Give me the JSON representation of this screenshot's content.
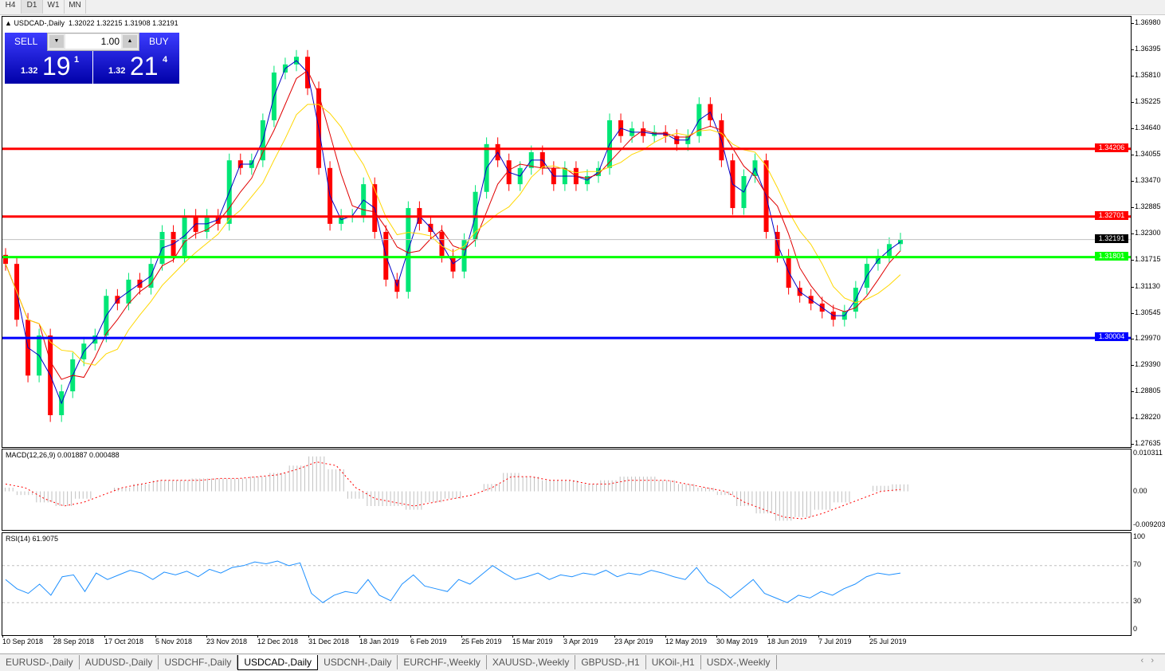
{
  "timeframes": [
    "H4",
    "D1",
    "W1",
    "MN"
  ],
  "active_timeframe": "D1",
  "chart_header": {
    "arrow": "▲",
    "symbol": "USDCAD-,Daily",
    "ohlc": "1.32022 1.32215 1.31908 1.32191"
  },
  "trade_panel": {
    "sell_label": "SELL",
    "buy_label": "BUY",
    "lot": "1.00",
    "sell_big": "1.32",
    "sell_main": "19",
    "sell_sup": "1",
    "buy_big": "1.32",
    "buy_main": "21",
    "buy_sup": "4"
  },
  "chart_data": [
    {
      "type": "candlestick",
      "title": "USDCAD-,Daily",
      "ylim": [
        1.27635,
        1.3698
      ],
      "y_ticks": [
        "1.36980",
        "1.36395",
        "1.35810",
        "1.35225",
        "1.34640",
        "1.34055",
        "1.33470",
        "1.32885",
        "1.32300",
        "1.31715",
        "1.31130",
        "1.30545",
        "1.29970",
        "1.29390",
        "1.28805",
        "1.28220",
        "1.27635"
      ],
      "x_ticks": [
        "10 Sep 2018",
        "28 Sep 2018",
        "17 Oct 2018",
        "5 Nov 2018",
        "23 Nov 2018",
        "12 Dec 2018",
        "31 Dec 2018",
        "18 Jan 2019",
        "6 Feb 2019",
        "25 Feb 2019",
        "15 Mar 2019",
        "3 Apr 2019",
        "23 Apr 2019",
        "12 May 2019",
        "30 May 2019",
        "18 Jun 2019",
        "7 Jul 2019",
        "25 Jul 2019"
      ],
      "close": [
        1.3165,
        1.3041,
        1.2917,
        1.3006,
        1.2829,
        1.2882,
        1.2953,
        1.2988,
        1.3006,
        1.3094,
        1.3077,
        1.313,
        1.3112,
        1.3165,
        1.3236,
        1.3183,
        1.3272,
        1.3236,
        1.3272,
        1.3254,
        1.3395,
        1.3378,
        1.3395,
        1.3484,
        1.359,
        1.3608,
        1.3625,
        1.3555,
        1.3378,
        1.3254,
        1.3272,
        1.3272,
        1.3342,
        1.3236,
        1.313,
        1.3103,
        1.3289,
        1.3254,
        1.3236,
        1.3183,
        1.3148,
        1.3218,
        1.3325,
        1.3431,
        1.3395,
        1.3342,
        1.3378,
        1.3413,
        1.3378,
        1.3342,
        1.3378,
        1.3342,
        1.336,
        1.3378,
        1.3484,
        1.3449,
        1.3466,
        1.3449,
        1.3458,
        1.3449,
        1.3431,
        1.3449,
        1.352,
        1.3484,
        1.3395,
        1.3289,
        1.336,
        1.3395,
        1.3236,
        1.3183,
        1.3112,
        1.3094,
        1.3077,
        1.3059,
        1.3041,
        1.3059,
        1.3112,
        1.3165,
        1.3183,
        1.3209,
        1.32191
      ],
      "levels": [
        {
          "value": "1.34206",
          "color": "#ff0000"
        },
        {
          "value": "1.32701",
          "color": "#ff0000"
        },
        {
          "value": "1.32191",
          "color": "#000000",
          "line": "#c0c0c0"
        },
        {
          "value": "1.31801",
          "color": "#00ff00"
        },
        {
          "value": "1.30004",
          "color": "#0000ff"
        }
      ],
      "colors": {
        "bull": "#00e676",
        "bear": "#ff0000",
        "ma_fast": "#0000c8",
        "ma_mid": "#e00000",
        "ma_slow": "#ffd700"
      }
    },
    {
      "type": "bar",
      "title": "MACD(12,26,9) 0.001887 0.000488",
      "ylim": [
        -0.009203,
        0.010311
      ],
      "y_ticks": [
        "0.010311",
        "0.00",
        "-0.009203"
      ],
      "histogram": [
        0.001,
        -0.001,
        -0.003,
        -0.004,
        -0.002,
        0,
        0.001,
        0.002,
        0.003,
        0.003,
        0.0035,
        0.0035,
        0.0035,
        0.004,
        0.005,
        0.007,
        0.0095,
        0.006,
        -0.002,
        -0.004,
        -0.004,
        -0.005,
        -0.003,
        -0.002,
        0,
        0.002,
        0.005,
        0.004,
        0.003,
        0.003,
        0.002,
        0.003,
        0.004,
        0.004,
        0.003,
        0.002,
        0.001,
        -0.001,
        -0.004,
        -0.006,
        -0.008,
        -0.007,
        -0.005,
        -0.003,
        0,
        0.0015,
        0.0019
      ],
      "signal": [
        0.002,
        0.001,
        -0.002,
        -0.004,
        -0.003,
        -0.001,
        0.001,
        0.002,
        0.003,
        0.003,
        0.003,
        0.0035,
        0.0035,
        0.004,
        0.0045,
        0.006,
        0.008,
        0.007,
        0.001,
        -0.002,
        -0.003,
        -0.004,
        -0.003,
        -0.002,
        -0.001,
        0.001,
        0.004,
        0.004,
        0.003,
        0.003,
        0.002,
        0.002,
        0.003,
        0.003,
        0.003,
        0.002,
        0.001,
        0,
        -0.003,
        -0.005,
        -0.007,
        -0.0075,
        -0.006,
        -0.004,
        -0.002,
        0,
        0.0005
      ],
      "colors": {
        "histogram": "#c0c0c0",
        "signal": "#ff0000"
      }
    },
    {
      "type": "line",
      "title": "RSI(14) 61.9075",
      "ylim": [
        0,
        100
      ],
      "y_ticks": [
        "100",
        "70",
        "30",
        "0"
      ],
      "values": [
        55,
        45,
        40,
        50,
        38,
        58,
        60,
        42,
        62,
        55,
        60,
        65,
        62,
        55,
        63,
        60,
        64,
        58,
        66,
        62,
        68,
        70,
        74,
        72,
        75,
        70,
        73,
        40,
        30,
        38,
        42,
        40,
        55,
        38,
        32,
        50,
        60,
        48,
        45,
        42,
        55,
        50,
        60,
        70,
        62,
        55,
        58,
        62,
        55,
        60,
        58,
        62,
        60,
        65,
        58,
        62,
        60,
        65,
        62,
        58,
        55,
        68,
        52,
        45,
        35,
        45,
        55,
        40,
        35,
        30,
        38,
        35,
        42,
        38,
        45,
        50,
        58,
        62,
        60,
        62
      ],
      "colors": {
        "line": "#1e90ff"
      }
    }
  ],
  "tabs": [
    "EURUSD-,Daily",
    "AUDUSD-,Daily",
    "USDCHF-,Daily",
    "USDCAD-,Daily",
    "USDCNH-,Daily",
    "EURCHF-,Weekly",
    "XAUUSD-,Weekly",
    "GBPUSD-,H1",
    "UKOil-,H1",
    "USDX-,Weekly"
  ],
  "active_tab": "USDCAD-,Daily",
  "scroll": {
    "left": "‹",
    "right": "›"
  }
}
